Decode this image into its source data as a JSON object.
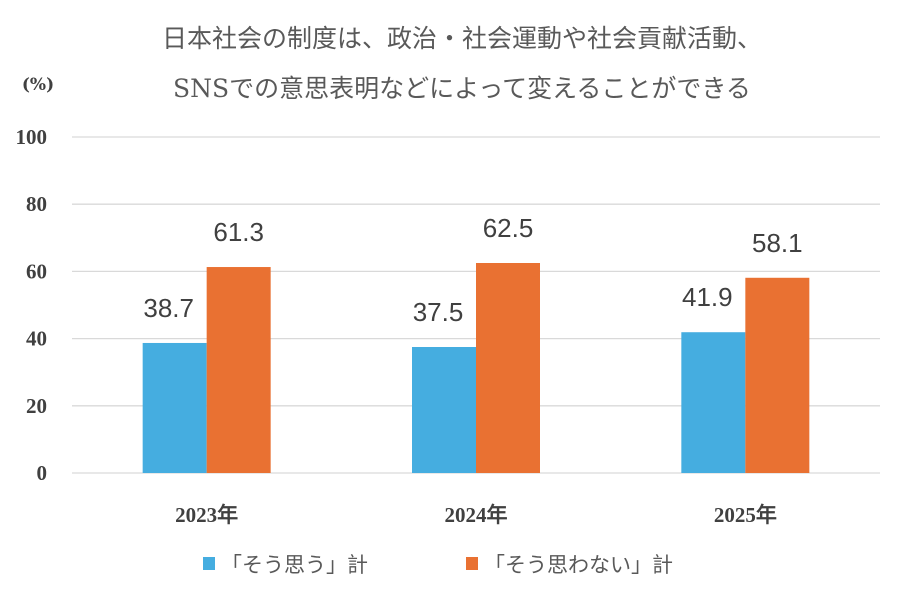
{
  "chart_data": {
    "type": "bar",
    "title": [
      "日本社会の制度は、政治・社会運動や社会貢献活動、",
      "SNSでの意思表明などによって変えることができる"
    ],
    "ylabel": "(%)",
    "xlabel": "",
    "ylim": [
      0,
      100
    ],
    "yticks": [
      "0",
      "20",
      "40",
      "60",
      "80",
      "100"
    ],
    "categories": [
      "2023年",
      "2024年",
      "2025年"
    ],
    "series": [
      {
        "name": "「そう思う」計",
        "color": "#45ade0",
        "values": [
          38.7,
          37.5,
          41.9
        ],
        "labels": [
          "38.7",
          "37.5",
          "41.9"
        ]
      },
      {
        "name": "「そう思わない」計",
        "color": "#e97132",
        "values": [
          61.3,
          62.5,
          58.1
        ],
        "labels": [
          "61.3",
          "62.5",
          "58.1"
        ]
      }
    ],
    "grid": true,
    "legend_position": "bottom"
  }
}
